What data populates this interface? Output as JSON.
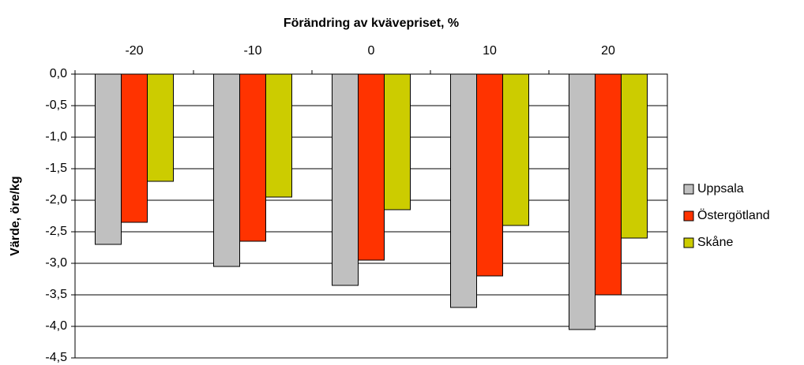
{
  "chart_data": {
    "type": "bar",
    "title": "Förändring av kvävepriset, %",
    "y_label": "Värde, öre/kg",
    "categories": [
      "-20",
      "-10",
      "0",
      "10",
      "20"
    ],
    "series": [
      {
        "name": "Uppsala",
        "color": "#c0c0c0",
        "values": [
          -2.7,
          -3.05,
          -3.35,
          -3.7,
          -4.05
        ]
      },
      {
        "name": "Östergötland",
        "color": "#ff3300",
        "values": [
          -2.35,
          -2.65,
          -2.95,
          -3.2,
          -3.5
        ]
      },
      {
        "name": "Skåne",
        "color": "#cccc00",
        "values": [
          -1.7,
          -1.95,
          -2.15,
          -2.4,
          -2.6
        ]
      }
    ],
    "ylim": [
      -4.5,
      0
    ],
    "yticks": [
      {
        "value": 0,
        "label": "0,0"
      },
      {
        "value": -0.5,
        "label": "-0,5"
      },
      {
        "value": -1,
        "label": "-1,0"
      },
      {
        "value": -1.5,
        "label": "-1,5"
      },
      {
        "value": -2,
        "label": "-2,0"
      },
      {
        "value": -2.5,
        "label": "-2,5"
      },
      {
        "value": -3,
        "label": "-3,0"
      },
      {
        "value": -3.5,
        "label": "-3,5"
      },
      {
        "value": -4,
        "label": "-4,0"
      },
      {
        "value": -4.5,
        "label": "-4,5"
      }
    ],
    "grid": true,
    "legend": "right"
  }
}
